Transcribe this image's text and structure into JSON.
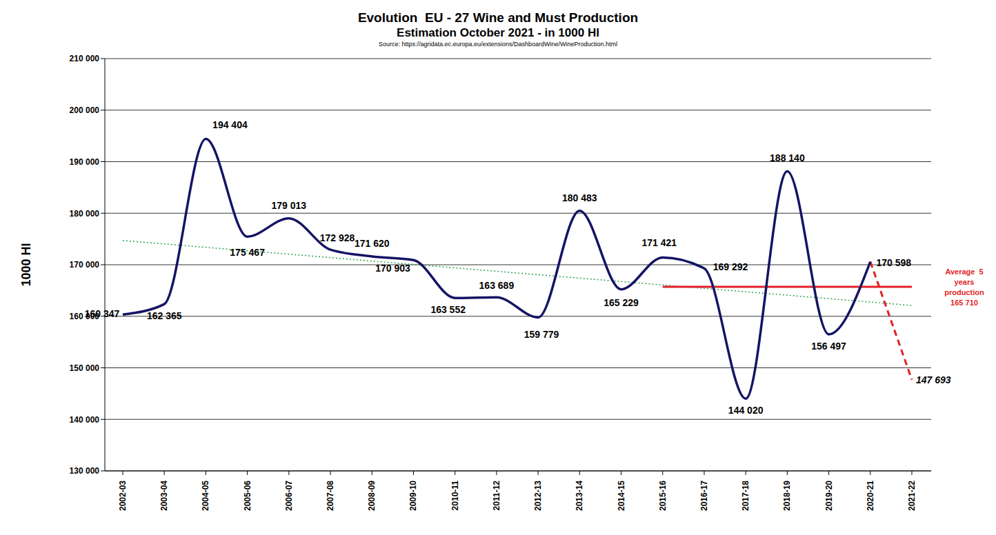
{
  "chart_data": {
    "type": "line",
    "title": "Evolution  EU - 27 Wine and Must Production",
    "subtitle": "Estimation October 2021 - in 1000 Hl",
    "source": "Source: https://agridata.ec.europa.eu/extensions/DashboardWine/WineProduction.html",
    "y_label": "1000 Hl",
    "categories": [
      "2002-03",
      "2003-04",
      "2004-05",
      "2005-06",
      "2006-07",
      "2007-08",
      "2008-09",
      "2009-10",
      "2010-11",
      "2011-12",
      "2012-13",
      "2013-14",
      "2014-15",
      "2015-16",
      "2016-17",
      "2017-18",
      "2018-19",
      "2019-20",
      "2020-21",
      "2021-22"
    ],
    "ylim": [
      130000,
      210000
    ],
    "yticks": [
      {
        "value": 130000,
        "label": "130 000"
      },
      {
        "value": 140000,
        "label": "140 000"
      },
      {
        "value": 150000,
        "label": "150 000"
      },
      {
        "value": 160000,
        "label": "160 000"
      },
      {
        "value": 170000,
        "label": "170 000"
      },
      {
        "value": 180000,
        "label": "180 000"
      },
      {
        "value": 190000,
        "label": "190 000"
      },
      {
        "value": 200000,
        "label": "200 000"
      },
      {
        "value": 210000,
        "label": "210 000"
      }
    ],
    "grid": true,
    "series": [
      {
        "color": "#2e9e4f",
        "line_style": "dotted",
        "marker": "none",
        "values": [
          174700,
          null,
          null,
          null,
          null,
          null,
          null,
          null,
          null,
          null,
          null,
          null,
          null,
          null,
          null,
          null,
          null,
          null,
          null,
          162100
        ]
      },
      {
        "color": "#e31f26",
        "line_style": "solid-straight",
        "marker": "none",
        "values": [
          null,
          null,
          null,
          null,
          null,
          null,
          null,
          null,
          null,
          null,
          null,
          null,
          null,
          165710,
          null,
          null,
          null,
          null,
          null,
          165710
        ],
        "annotation": [
          "Average  5",
          "years",
          "production",
          "165 710"
        ]
      },
      {
        "color": "#e31f26",
        "line_style": "dashed",
        "marker": "none",
        "data_labels": true,
        "values": [
          null,
          null,
          null,
          null,
          null,
          null,
          null,
          null,
          null,
          null,
          null,
          null,
          null,
          null,
          null,
          null,
          null,
          null,
          170598,
          147693
        ],
        "value_labels": [
          null,
          null,
          null,
          null,
          null,
          null,
          null,
          null,
          null,
          null,
          null,
          null,
          null,
          null,
          null,
          null,
          null,
          null,
          null,
          "147 693"
        ]
      },
      {
        "color": "#141464",
        "line_style": "solid",
        "marker": "none",
        "data_labels": true,
        "values": [
          160347,
          162365,
          194404,
          175467,
          179013,
          172928,
          171620,
          170903,
          163552,
          163689,
          159779,
          180483,
          165229,
          171421,
          169292,
          144020,
          188140,
          156497,
          170598,
          null
        ],
        "value_labels": [
          "160 347",
          "162 365",
          "194 404",
          "175 467",
          "179 013",
          "172 928",
          "171 620",
          "170 903",
          "163 552",
          "163 689",
          "159 779",
          "180 483",
          "165 229",
          "171 421",
          "169 292",
          "144 020",
          "188 140",
          "156 497",
          "170 598",
          null
        ]
      }
    ]
  }
}
